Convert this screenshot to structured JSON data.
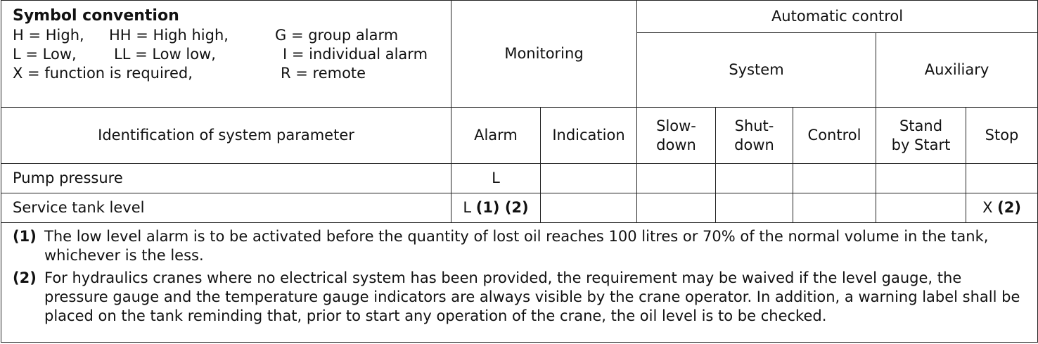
{
  "convention": {
    "title": "Symbol convention",
    "rows": [
      [
        "H = High,",
        "HH = High high,",
        "G = group alarm"
      ],
      [
        "L  = Low,",
        "LL  = Low low,",
        "I  = individual alarm"
      ],
      [
        "X =  function is required,",
        "",
        "R = remote"
      ]
    ]
  },
  "headers": {
    "monitoring": "Monitoring",
    "automatic_control": "Automatic control",
    "system": "System",
    "auxiliary": "Auxiliary",
    "identification": "Identification of system parameter",
    "alarm": "Alarm",
    "indication": "Indication",
    "slowdown": [
      "Slow-",
      "down"
    ],
    "shutdown": [
      "Shut-",
      "down"
    ],
    "control": "Control",
    "standby": [
      "Stand",
      "by Start"
    ],
    "stop": "Stop"
  },
  "rows": [
    {
      "param": "Pump pressure",
      "alarm": "L",
      "alarm_notes": "",
      "stop": "",
      "stop_notes": ""
    },
    {
      "param": "Service tank level",
      "alarm": "L",
      "alarm_notes": "(1) (2)",
      "stop": "X",
      "stop_notes": "(2)"
    }
  ],
  "notes": [
    {
      "num": "(1)",
      "text": "The low level alarm is to be activated before the quantity of lost oil reaches 100 litres or 70% of the normal volume in the tank, whichever is the less."
    },
    {
      "num": "(2)",
      "text": "For hydraulics cranes where no electrical system has been provided, the requirement may be waived if the level gauge, the pressure gauge and the temperature gauge indicators are always visible by the crane operator. In addition, a warning label shall be placed on the tank reminding that, prior to start any operation of the crane, the oil level is to be checked."
    }
  ]
}
